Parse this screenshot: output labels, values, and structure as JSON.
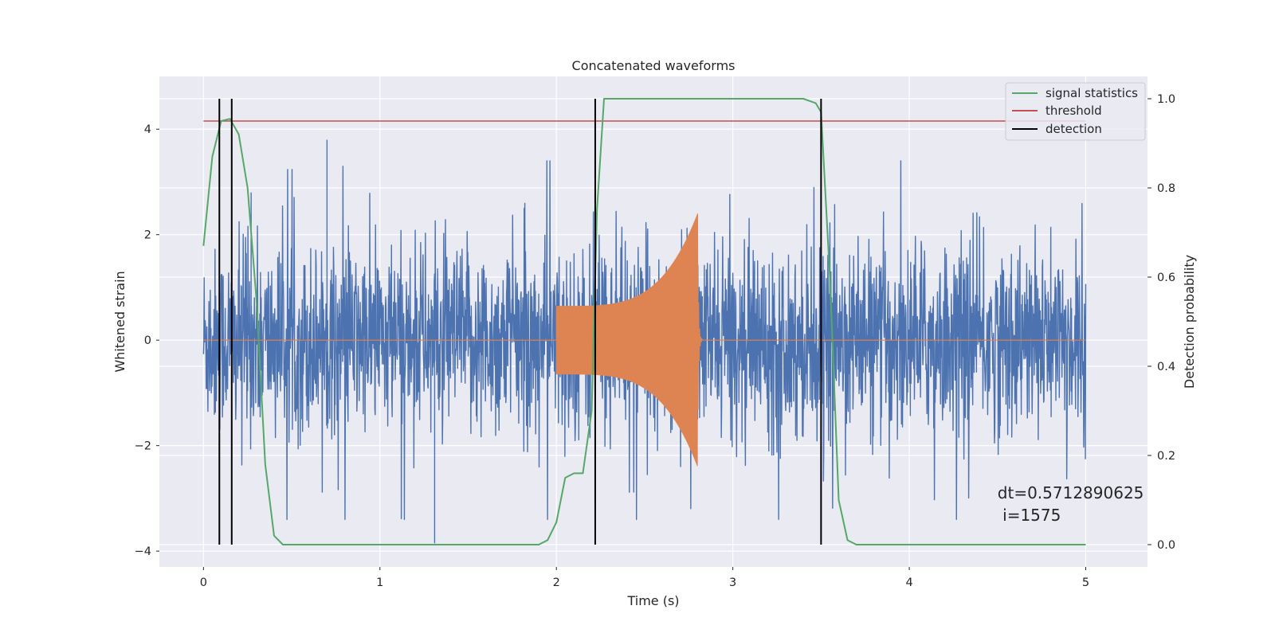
{
  "chart_data": {
    "type": "line",
    "title": "Concatenated waveforms",
    "xlabel": "Time (s)",
    "ylabel": "Whitened strain",
    "y2label": "Detection probability",
    "xlim": [
      -0.25,
      5.35
    ],
    "ylim": [
      -4.3,
      5.0
    ],
    "y2lim": [
      -0.05,
      1.05
    ],
    "x_ticks": [
      0,
      1,
      2,
      3,
      4,
      5
    ],
    "y_ticks": [
      -4,
      -2,
      0,
      2,
      4
    ],
    "y2_ticks": [
      0.0,
      0.2,
      0.4,
      0.6,
      0.8,
      1.0
    ],
    "y_tick_labels": [
      "−4",
      "−2",
      "0",
      "2",
      "4"
    ],
    "y2_tick_labels": [
      "0.0",
      "0.2",
      "0.4",
      "0.6",
      "0.8",
      "1.0"
    ],
    "grid": true,
    "legend_position": "top-right",
    "colors": {
      "strain": "#4c72b0",
      "signal": "#dd8452",
      "signal_statistics": "#55a868",
      "threshold": "#c44e52",
      "detection": "#000000",
      "plot_background": "#eaeaf2",
      "grid": "#ffffff"
    },
    "strain": {
      "x_range": [
        0,
        5
      ],
      "typical_amplitude": 1.2,
      "peak_values": [
        {
          "x": 0.7,
          "y": 3.8
        },
        {
          "x": 1.31,
          "y": -3.85
        },
        {
          "x": 2.22,
          "y": -3.1
        },
        {
          "x": 0.27,
          "y": 2.8
        }
      ]
    },
    "injected_signal": {
      "x_start": 2.0,
      "x_peak": 2.8,
      "start_amplitude": 0.65,
      "peak_amplitude": 2.4
    },
    "signal_statistics": {
      "axis": "right",
      "x": [
        0,
        0.05,
        0.1,
        0.15,
        0.2,
        0.25,
        0.3,
        0.35,
        0.4,
        0.45,
        1.9,
        1.95,
        2.0,
        2.05,
        2.1,
        2.15,
        2.2,
        2.23,
        2.27,
        2.3,
        3.4,
        3.47,
        3.5,
        3.55,
        3.6,
        3.65,
        3.7,
        5.0
      ],
      "y": [
        0.67,
        0.87,
        0.95,
        0.955,
        0.92,
        0.8,
        0.55,
        0.18,
        0.02,
        0.0,
        0.0,
        0.01,
        0.05,
        0.15,
        0.16,
        0.16,
        0.3,
        0.75,
        1.0,
        1.0,
        1.0,
        0.99,
        0.97,
        0.6,
        0.1,
        0.01,
        0.0,
        0.0
      ]
    },
    "threshold": {
      "axis": "right",
      "value": 0.95,
      "x_range": [
        0,
        5
      ]
    },
    "detections": [
      0.09,
      0.16,
      2.22,
      3.5
    ],
    "detection_range": [
      0.0,
      1.0
    ],
    "legend": [
      "signal statistics",
      "threshold",
      "detection"
    ],
    "annotation": {
      "line1": "dt=0.5712890625",
      "line2": " i=1575",
      "x": 4.5,
      "y": -3.0
    }
  }
}
